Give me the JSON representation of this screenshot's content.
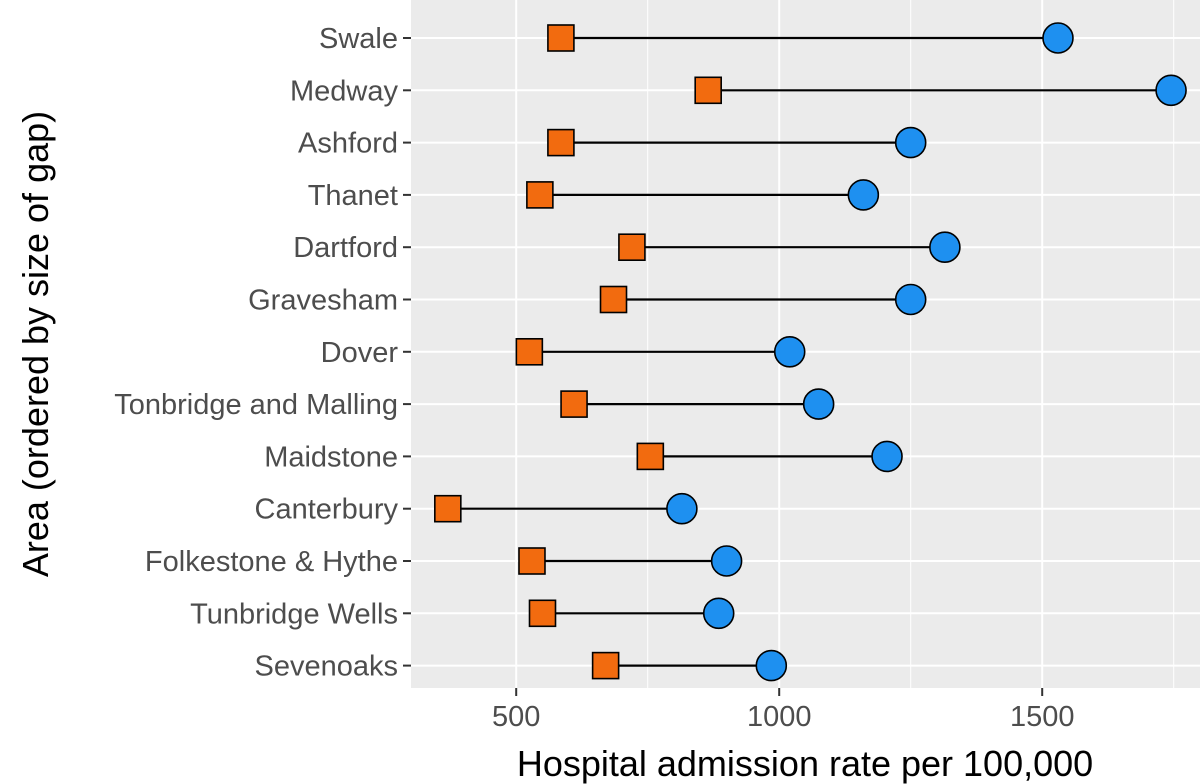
{
  "chart_data": {
    "type": "dumbbell",
    "xlabel": "Hospital admission rate per 100,000",
    "ylabel": "Area (ordered by size of gap)",
    "xlim": [
      300,
      1800
    ],
    "x_ticks": [
      500,
      1000,
      1500
    ],
    "grid": true,
    "legend": "none",
    "colors": {
      "square": "#F26B0F",
      "circle": "#1E90F0",
      "panel": "#EBEBEB",
      "grid": "#FFFFFF"
    },
    "categories": [
      "Swale",
      "Medway",
      "Ashford",
      "Thanet",
      "Dartford",
      "Gravesham",
      "Dover",
      "Tonbridge and Malling",
      "Maidstone",
      "Canterbury",
      "Folkestone & Hythe",
      "Tunbridge Wells",
      "Sevenoaks"
    ],
    "series": [
      {
        "marker": "square",
        "values": [
          585,
          865,
          585,
          545,
          720,
          685,
          525,
          610,
          755,
          370,
          530,
          550,
          670
        ]
      },
      {
        "marker": "circle",
        "values": [
          1530,
          1745,
          1250,
          1160,
          1315,
          1250,
          1020,
          1075,
          1205,
          815,
          900,
          885,
          985
        ]
      }
    ]
  }
}
